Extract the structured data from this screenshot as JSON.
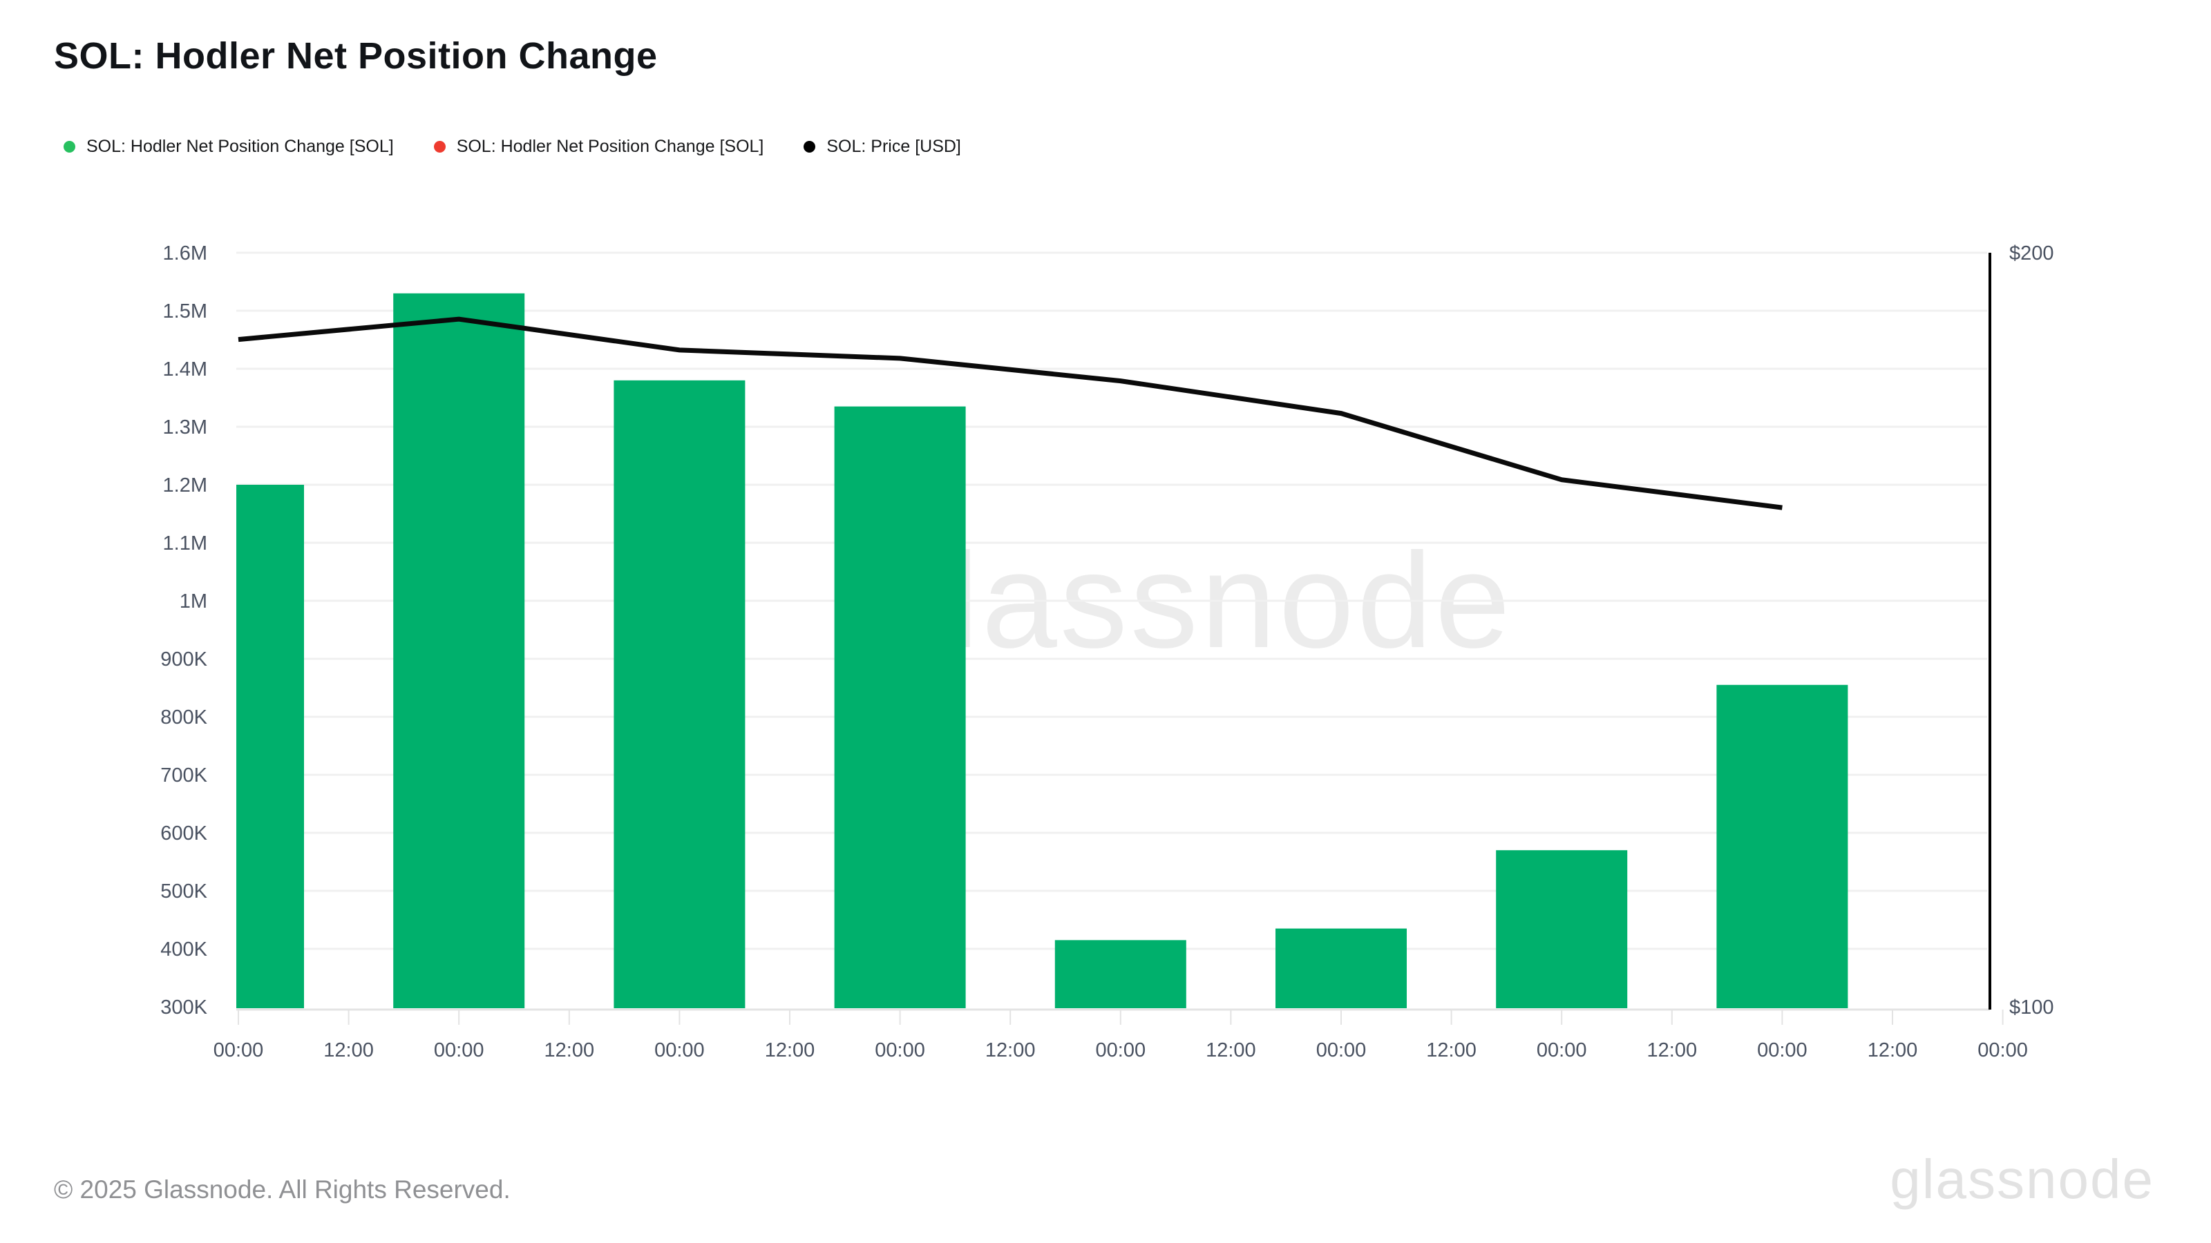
{
  "title": "SOL: Hodler Net Position Change",
  "legend": {
    "items": [
      {
        "label": "SOL: Hodler Net Position Change [SOL]",
        "color": "#27c05f",
        "icon": "green-dot"
      },
      {
        "label": "SOL: Hodler Net Position Change [SOL]",
        "color": "#ee3b2f",
        "icon": "red-dot"
      },
      {
        "label": "SOL: Price [USD]",
        "color": "#000000",
        "icon": "black-dot"
      }
    ]
  },
  "chart_data": {
    "type": "bar",
    "title": "SOL: Hodler Net Position Change",
    "x_tick_labels": [
      "00:00",
      "12:00",
      "00:00",
      "12:00",
      "00:00",
      "12:00",
      "00:00",
      "12:00",
      "00:00",
      "12:00",
      "00:00",
      "12:00",
      "00:00",
      "12:00",
      "00:00",
      "12:00",
      "00:00"
    ],
    "series": [
      {
        "name": "SOL: Hodler Net Position Change [SOL]",
        "type": "bar",
        "axis": "left",
        "color": "#00b06c",
        "x_label_index": [
          0,
          2,
          4,
          6,
          8,
          10,
          12,
          14
        ],
        "values": [
          1200000,
          1530000,
          1380000,
          1335000,
          415000,
          435000,
          570000,
          855000
        ]
      },
      {
        "name": "SOL: Price [USD]",
        "type": "line",
        "axis": "right",
        "color": "#0a0a0a",
        "x_label_index": [
          0,
          2,
          4,
          6,
          8,
          10,
          12,
          14
        ],
        "values": [
          188.5,
          191.2,
          187.1,
          186.0,
          183.0,
          178.7,
          169.9,
          166.2
        ]
      }
    ],
    "left_axis": {
      "min": 300000,
      "max": 1600000,
      "ticks": [
        {
          "label": "300K",
          "value": 300000
        },
        {
          "label": "400K",
          "value": 400000
        },
        {
          "label": "500K",
          "value": 500000
        },
        {
          "label": "600K",
          "value": 600000
        },
        {
          "label": "700K",
          "value": 700000
        },
        {
          "label": "800K",
          "value": 800000
        },
        {
          "label": "900K",
          "value": 900000
        },
        {
          "label": "1M",
          "value": 1000000
        },
        {
          "label": "1.1M",
          "value": 1100000
        },
        {
          "label": "1.2M",
          "value": 1200000
        },
        {
          "label": "1.3M",
          "value": 1300000
        },
        {
          "label": "1.4M",
          "value": 1400000
        },
        {
          "label": "1.5M",
          "value": 1500000
        },
        {
          "label": "1.6M",
          "value": 1600000
        }
      ]
    },
    "right_axis": {
      "min": 100,
      "max": 200,
      "ticks": [
        {
          "label": "$100",
          "value": 100
        },
        {
          "label": "$200",
          "value": 200
        }
      ]
    },
    "grid": "horizontal",
    "legend_position": "top-left"
  },
  "watermarks": {
    "center": "glassnode",
    "corner": "glassnode"
  },
  "footer": {
    "copyright": "© 2025 Glassnode. All Rights Reserved."
  },
  "colors": {
    "bar_green": "#00b06c",
    "price_line": "#0a0a0a",
    "axis_text": "#4a5261",
    "gridline": "#f0f0f0",
    "axis_border": "#e3e3e3"
  }
}
